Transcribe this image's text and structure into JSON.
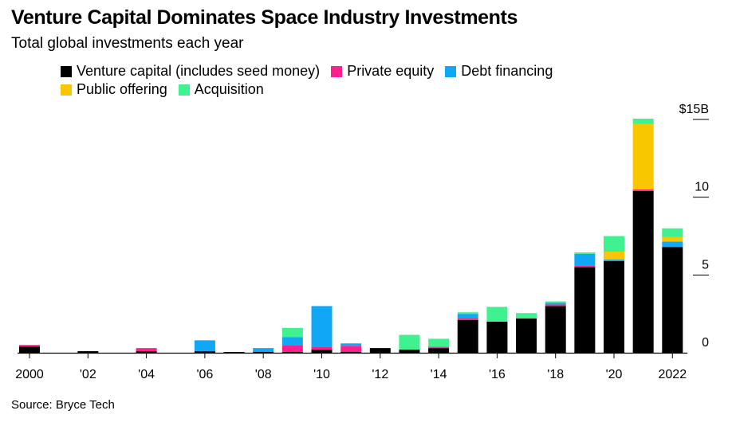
{
  "title": "Venture Capital Dominates Space Industry Investments",
  "subtitle": "Total global investments each year",
  "source": "Source: Bryce Tech",
  "chart_data": {
    "type": "bar",
    "stacked": true,
    "title": "Venture Capital Dominates Space Industry Investments",
    "subtitle": "Total global investments each year",
    "xlabel": "",
    "ylabel": "",
    "ylim": [
      0,
      15
    ],
    "y_ticks": [
      {
        "value": 0,
        "label": "0"
      },
      {
        "value": 5,
        "label": "5"
      },
      {
        "value": 10,
        "label": "10"
      },
      {
        "value": 15,
        "label": "$15B"
      }
    ],
    "y_axis_side": "right",
    "legend_position": "top",
    "grid": false,
    "categories": [
      2000,
      2001,
      2002,
      2003,
      2004,
      2005,
      2006,
      2007,
      2008,
      2009,
      2010,
      2011,
      2012,
      2013,
      2014,
      2015,
      2016,
      2017,
      2018,
      2019,
      2020,
      2021,
      2022
    ],
    "x_tick_labels": [
      {
        "category": 2000,
        "label": "2000"
      },
      {
        "category": 2002,
        "label": "'02"
      },
      {
        "category": 2004,
        "label": "'04"
      },
      {
        "category": 2006,
        "label": "'06"
      },
      {
        "category": 2008,
        "label": "'08"
      },
      {
        "category": 2010,
        "label": "'10"
      },
      {
        "category": 2012,
        "label": "'12"
      },
      {
        "category": 2014,
        "label": "'14"
      },
      {
        "category": 2016,
        "label": "'16"
      },
      {
        "category": 2018,
        "label": "'18"
      },
      {
        "category": 2020,
        "label": "'20"
      },
      {
        "category": 2022,
        "label": "2022"
      }
    ],
    "series": [
      {
        "name": "Venture capital (includes seed money)",
        "color": "#000000",
        "values": [
          0.4,
          0,
          0.1,
          0,
          0.1,
          0,
          0.1,
          0.05,
          0.05,
          0.05,
          0.2,
          0.05,
          0.3,
          0.2,
          0.3,
          2.1,
          2.0,
          2.2,
          3.0,
          5.5,
          5.9,
          10.4,
          6.8
        ]
      },
      {
        "name": "Private equity",
        "color": "#ff1f8e",
        "values": [
          0.1,
          0,
          0,
          0,
          0.2,
          0,
          0,
          0,
          0,
          0.45,
          0.2,
          0.4,
          0,
          0,
          0.05,
          0.1,
          0,
          0,
          0.1,
          0.1,
          0,
          0.1,
          0
        ]
      },
      {
        "name": "Debt financing",
        "color": "#10a8f5",
        "values": [
          0,
          0,
          0,
          0,
          0,
          0,
          0.7,
          0,
          0.25,
          0.5,
          2.6,
          0.15,
          0,
          0,
          0.05,
          0.3,
          0,
          0,
          0.1,
          0.75,
          0.1,
          0,
          0.35
        ]
      },
      {
        "name": "Public offering",
        "color": "#f9c700",
        "values": [
          0,
          0,
          0,
          0,
          0,
          0,
          0,
          0,
          0,
          0,
          0,
          0,
          0,
          0,
          0,
          0,
          0,
          0,
          0,
          0,
          0.5,
          4.2,
          0.3
        ]
      },
      {
        "name": "Acquisition",
        "color": "#3ff28f",
        "values": [
          0,
          0,
          0,
          0,
          0,
          0,
          0,
          0,
          0,
          0.6,
          0,
          0,
          0,
          0.95,
          0.5,
          0.1,
          0.95,
          0.35,
          0.1,
          0.1,
          1.0,
          0.35,
          0.55
        ]
      }
    ]
  }
}
